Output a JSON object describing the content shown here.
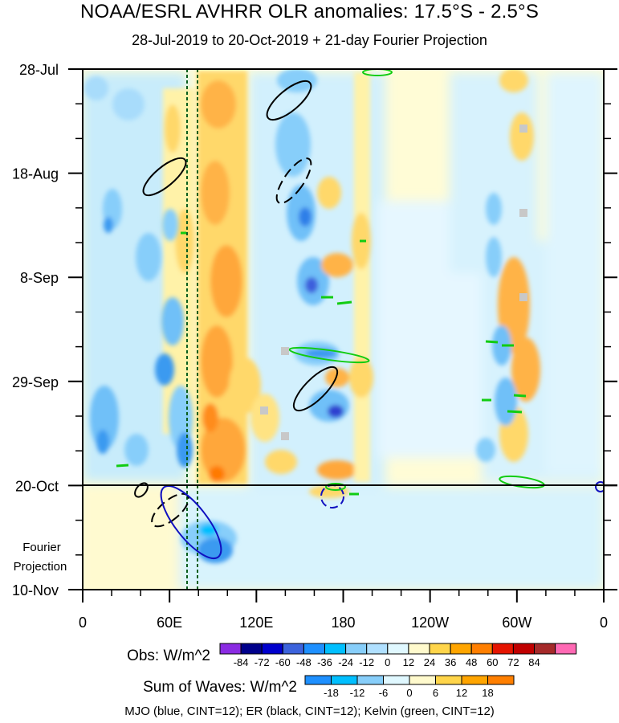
{
  "title": "NOAA/ESRL AVHRR OLR anomalies: 17.5°S - 2.5°S",
  "subtitle": "28-Jul-2019 to 20-Oct-2019 + 21-day Fourier Projection",
  "footer": "MJO (blue, CINT=12); ER (black, CINT=12); Kelvin (green, CINT=12)",
  "projection_label_line1": "Fourier",
  "projection_label_line2": "Projection",
  "obs_colorbar": {
    "title": "Obs: W/m^2",
    "ticks": [
      "-84",
      "-72",
      "-60",
      "-48",
      "-36",
      "-24",
      "-12",
      "0",
      "12",
      "24",
      "36",
      "48",
      "60",
      "72",
      "84"
    ],
    "colors": [
      "#8a2be2",
      "#00008b",
      "#0000cd",
      "#3c63dc",
      "#1e90ff",
      "#00bfff",
      "#87cefa",
      "#b0e0ff",
      "#e0f8ff",
      "#fffacd",
      "#ffd54a",
      "#ffa500",
      "#ff7f00",
      "#e51400",
      "#c00000",
      "#a52a2a",
      "#ff69b4"
    ]
  },
  "waves_colorbar": {
    "title": "Sum of Waves: W/m^2",
    "ticks": [
      "-18",
      "-12",
      "-6",
      "0",
      "6",
      "12",
      "18"
    ],
    "colors": [
      "#1e90ff",
      "#00bfff",
      "#87cefa",
      "#e0f8ff",
      "#fffacd",
      "#ffd54a",
      "#ffa500",
      "#ff7f00"
    ]
  },
  "chart_data": {
    "type": "heatmap",
    "title": "NOAA/ESRL AVHRR OLR anomalies: 17.5°S - 2.5°S",
    "subtitle": "28-Jul-2019 to 20-Oct-2019 + 21-day Fourier Projection",
    "x_ticks": [
      "0",
      "60E",
      "120E",
      "180",
      "120W",
      "60W",
      "0"
    ],
    "x_tick_values": [
      0,
      60,
      120,
      180,
      240,
      300,
      360
    ],
    "xlim": [
      0,
      360
    ],
    "y_ticks": [
      "28-Jul",
      "18-Aug",
      "8-Sep",
      "29-Sep",
      "20-Oct",
      "10-Nov"
    ],
    "y_tick_days": [
      0,
      21,
      42,
      63,
      84,
      105
    ],
    "ylim_days": [
      0,
      105
    ],
    "observation_end": "20-Oct",
    "projection_days": 21,
    "mjo_reference_lines_lon": [
      72,
      80
    ],
    "anomaly_bands": [
      {
        "sign": "positive",
        "lon_center": 90,
        "lon_width": 30,
        "day_start": 0,
        "day_end": 84,
        "intensity": 36
      },
      {
        "sign": "negative",
        "lon_center": 45,
        "lon_width": 60,
        "day_start": 20,
        "day_end": 80,
        "intensity": -36
      },
      {
        "sign": "negative",
        "lon_center": 160,
        "lon_width": 40,
        "day_start": 0,
        "day_end": 80,
        "intensity": -48
      },
      {
        "sign": "positive",
        "lon_center": 195,
        "lon_width": 15,
        "day_start": 0,
        "day_end": 84,
        "intensity": 24
      },
      {
        "sign": "positive",
        "lon_center": 300,
        "lon_width": 20,
        "day_start": 0,
        "day_end": 84,
        "intensity": 36
      },
      {
        "sign": "negative",
        "lon_center": 285,
        "lon_width": 15,
        "day_start": 20,
        "day_end": 84,
        "intensity": -36
      },
      {
        "sign": "negative",
        "lon_center": 95,
        "lon_width": 40,
        "day_start": 84,
        "day_end": 105,
        "intensity": -18
      }
    ]
  }
}
